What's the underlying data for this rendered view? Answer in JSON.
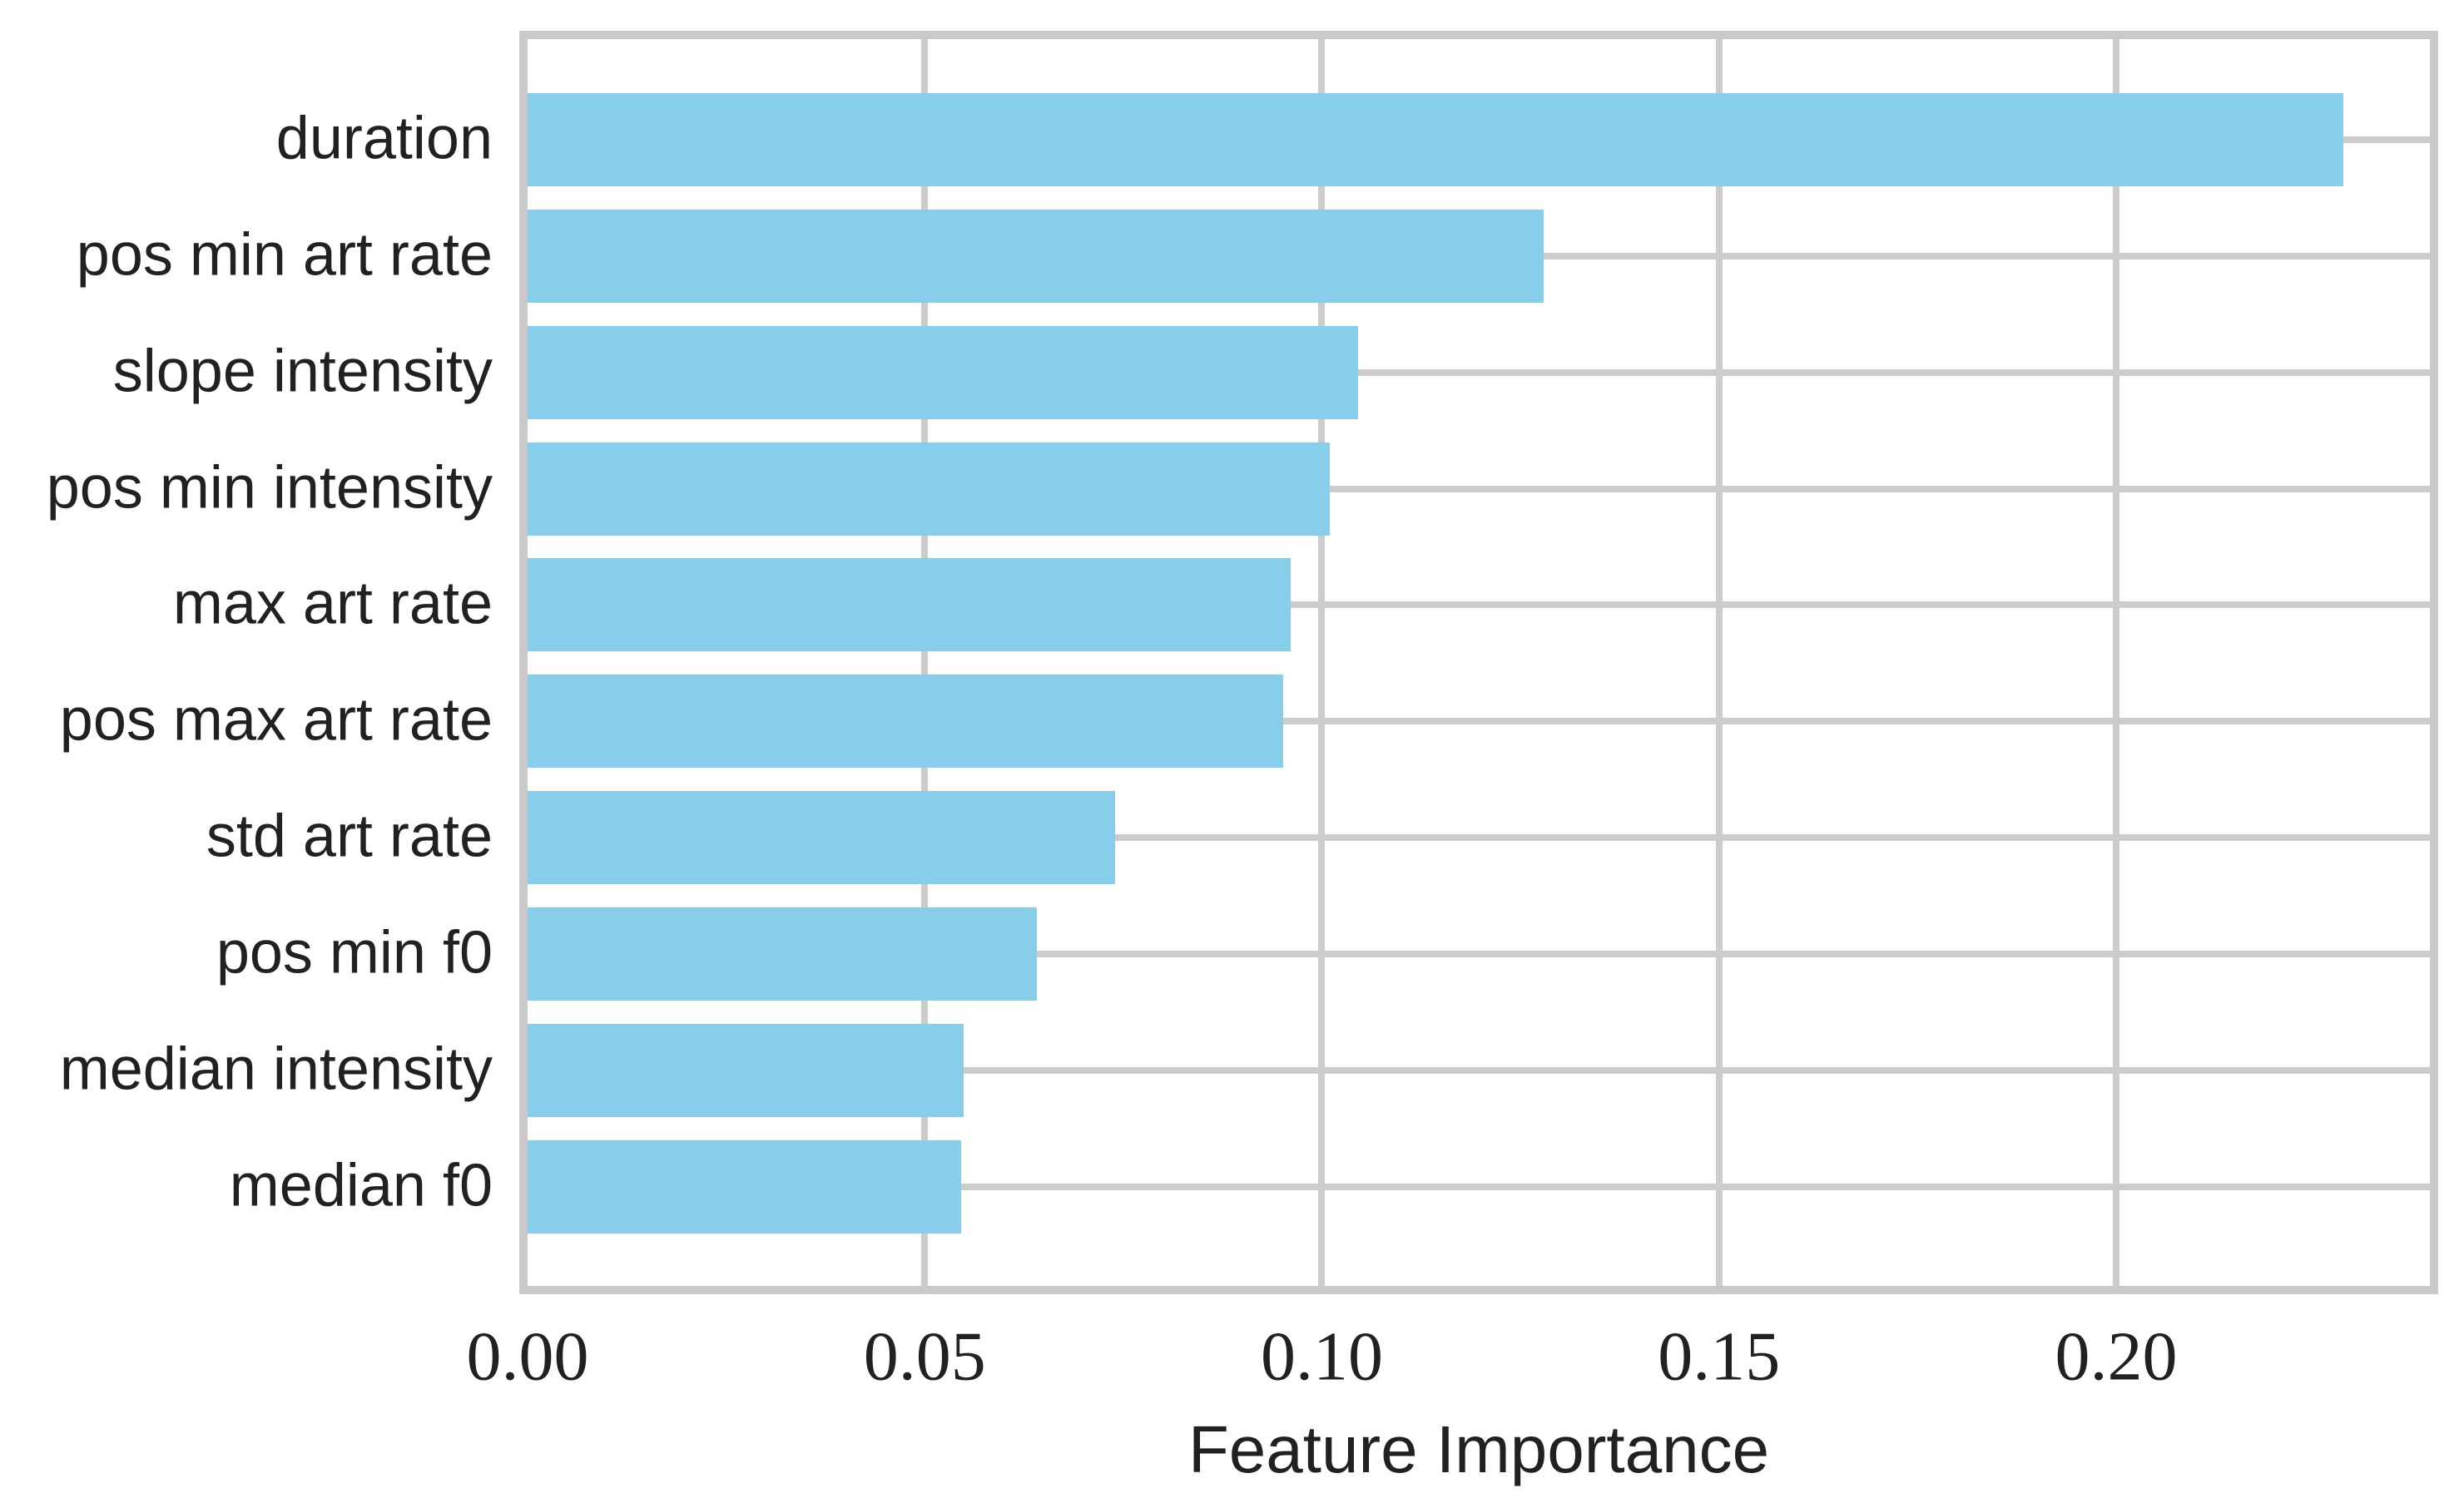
{
  "chart_data": {
    "type": "bar",
    "orientation": "horizontal",
    "title": "",
    "categories": [
      "duration",
      "pos min art rate",
      "slope intensity",
      "pos min intensity",
      "max art rate",
      "pos max art rate",
      "std art rate",
      "pos min f0",
      "median intensity",
      "median f0"
    ],
    "values": [
      0.2286,
      0.1279,
      0.1046,
      0.101,
      0.0961,
      0.0951,
      0.074,
      0.0641,
      0.0549,
      0.0546
    ],
    "xlabel": "Feature Importance",
    "ylabel": "",
    "x_ticks": [
      "0.00",
      "0.05",
      "0.10",
      "0.15",
      "0.20"
    ],
    "x_tick_values": [
      0.0,
      0.05,
      0.1,
      0.15,
      0.2
    ],
    "xlim": [
      0,
      0.2395
    ],
    "grid": "both",
    "legend": "none",
    "bar_color": "#87CEEB",
    "grid_color": "#cccccc",
    "spine_color": "#c9c9c9",
    "text_color": "#212121",
    "background_color": "#ffffff"
  }
}
